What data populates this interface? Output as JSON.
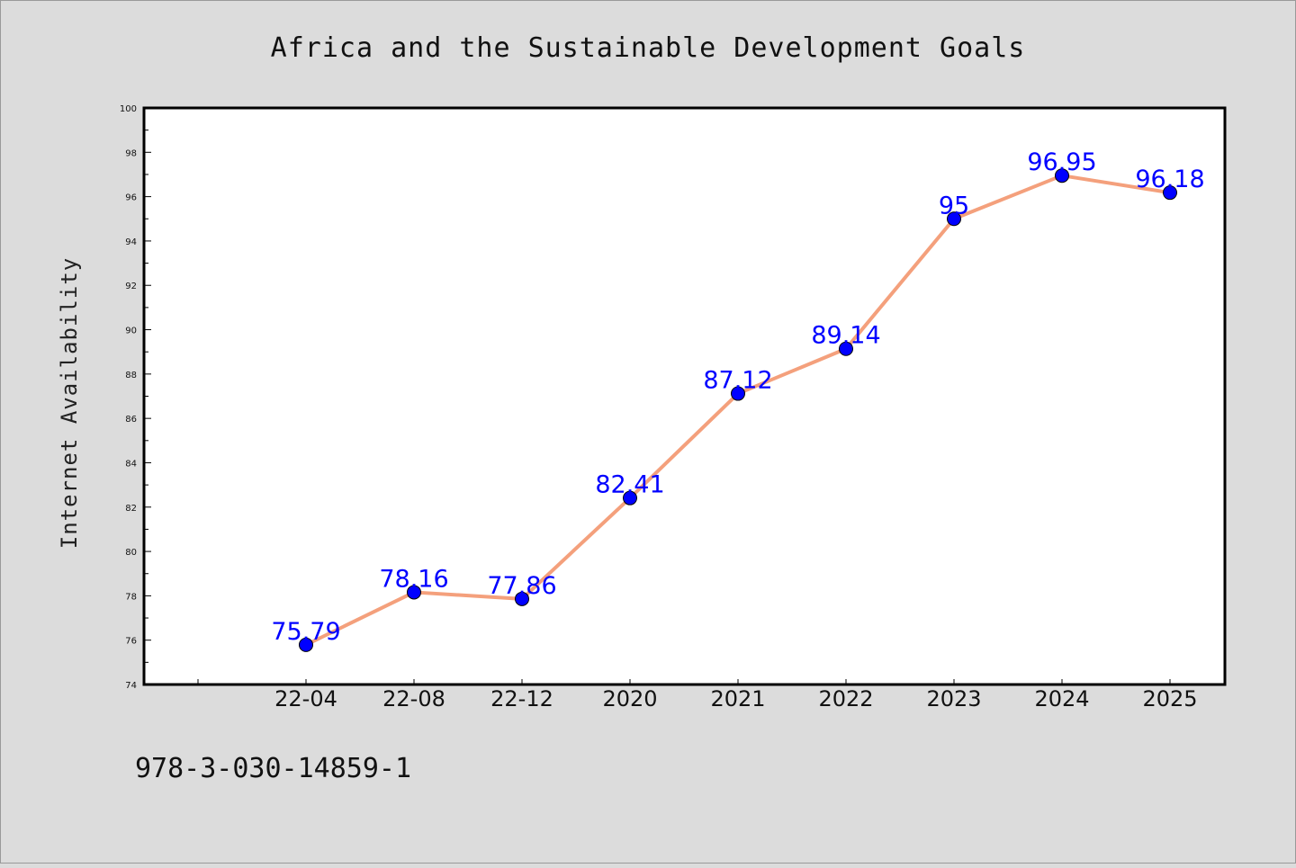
{
  "colors": {
    "background": "#dcdcdc",
    "plot_background": "#ffffff",
    "line": "#f4a07c",
    "marker": "#0000ff",
    "data_label": "#0000ff"
  },
  "footer_text": "978-3-030-14859-1",
  "chart_data": {
    "type": "line",
    "title": "Africa and the Sustainable Development Goals",
    "xlabel": "",
    "ylabel": "Internet Availability",
    "categories": [
      "22-04",
      "22-08",
      "22-12",
      "2020",
      "2021",
      "2022",
      "2023",
      "2024",
      "2025"
    ],
    "series": [
      {
        "values": [
          75.79,
          78.16,
          77.86,
          82.41,
          87.12,
          89.14,
          95,
          96.95,
          96.18
        ],
        "labels": [
          "75.79",
          "78.16",
          "77.86",
          "82.41",
          "87.12",
          "89.14",
          "95",
          "96.95",
          "96.18"
        ],
        "marker": "circle"
      }
    ],
    "ylim": [
      74,
      100
    ],
    "y_ticks": [
      "74",
      "76",
      "78",
      "80",
      "82",
      "84",
      "86",
      "88",
      "90",
      "92",
      "94",
      "96",
      "98",
      "100"
    ],
    "grid": false,
    "legend": "none"
  }
}
